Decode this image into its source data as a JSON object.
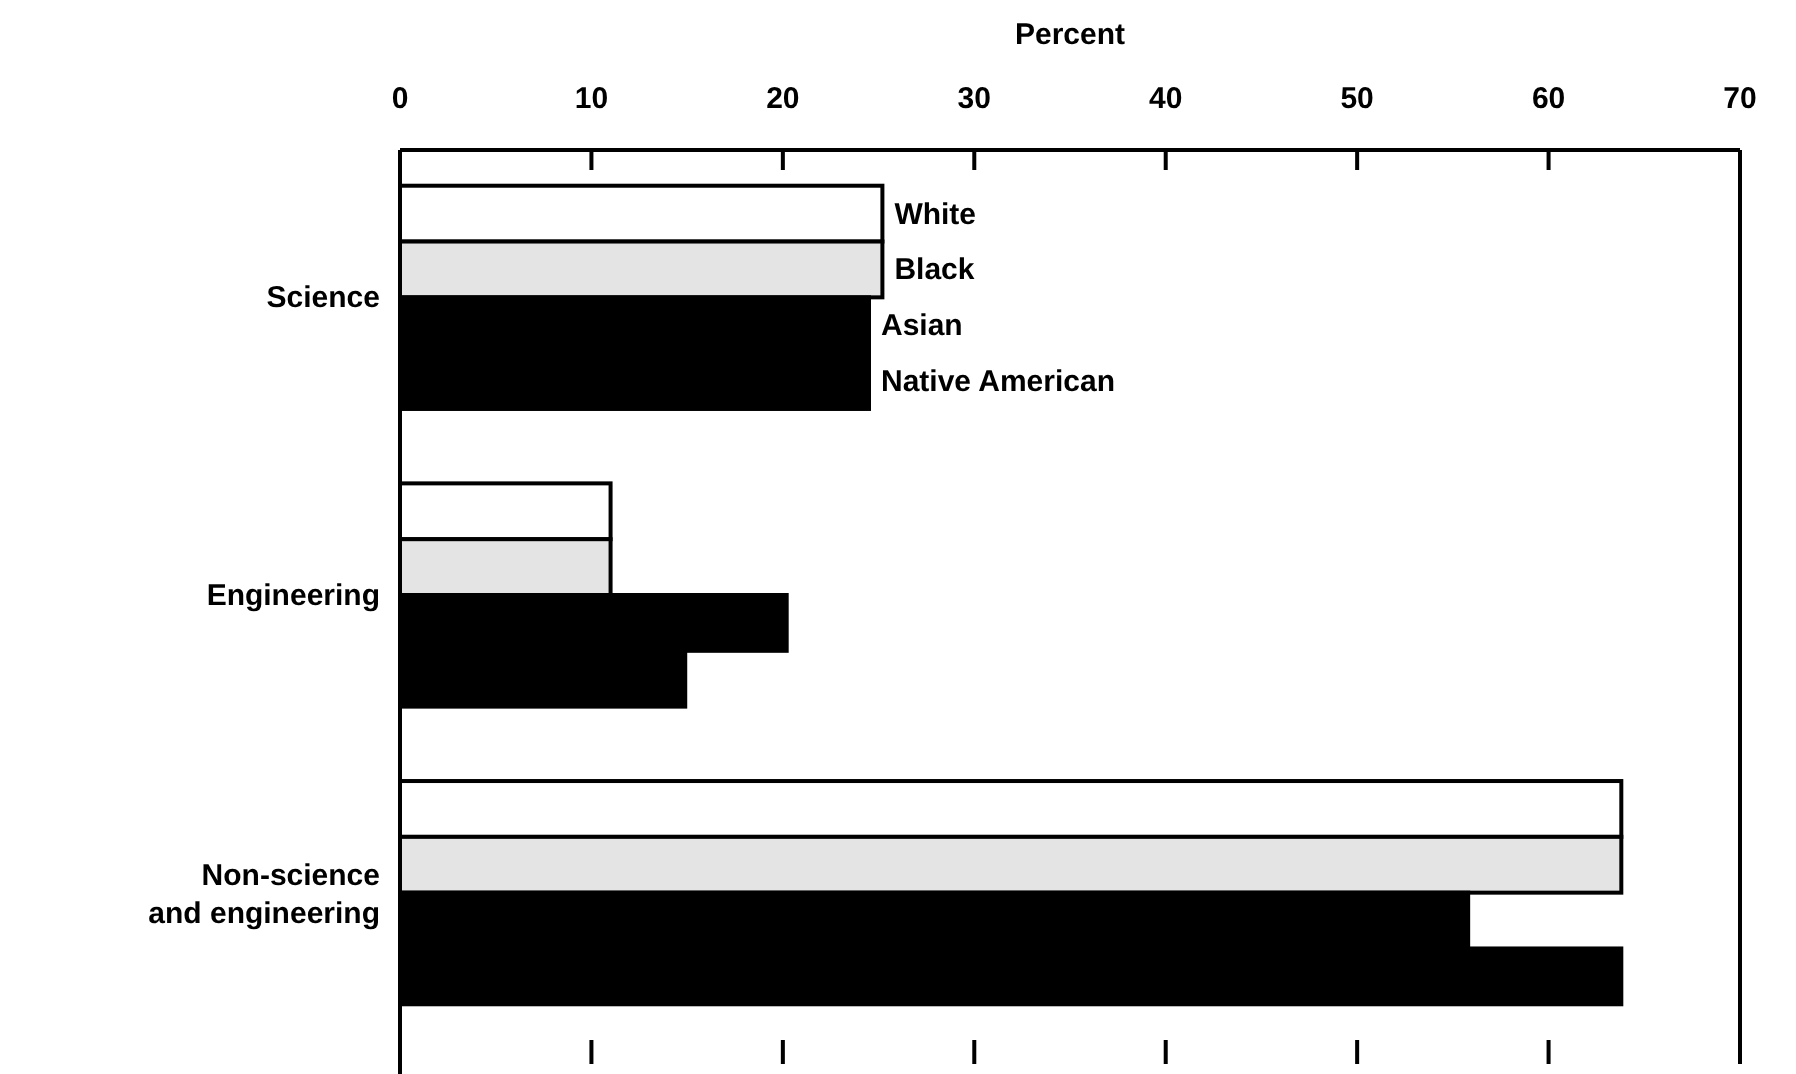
{
  "chart_data": {
    "type": "bar",
    "orientation": "horizontal",
    "xlabel": "Percent",
    "categories": [
      "Science",
      "Engineering",
      "Non-science\nand engineering"
    ],
    "series": [
      {
        "name": "White",
        "color": "#ffffff",
        "values": [
          25.2,
          11.0,
          63.8
        ]
      },
      {
        "name": "Black",
        "color": "#e4e4e4",
        "values": [
          25.2,
          11.0,
          63.8
        ]
      },
      {
        "name": "Asian",
        "color": "#000000",
        "values": [
          24.5,
          20.2,
          55.8
        ]
      },
      {
        "name": "Native American",
        "color": "#000000",
        "values": [
          24.5,
          14.9,
          63.8
        ]
      }
    ],
    "xlim": [
      0,
      70
    ],
    "xticks": [
      0,
      10,
      20,
      30,
      40,
      50,
      60,
      70
    ],
    "grid": false
  }
}
